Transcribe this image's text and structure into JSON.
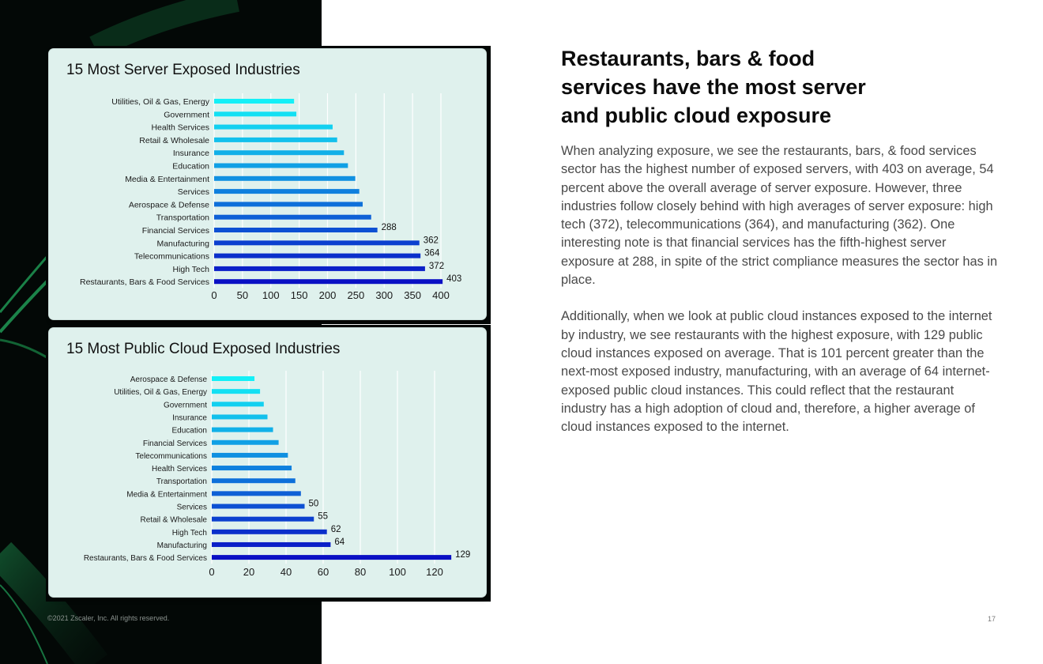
{
  "headline": "Restaurants, bars & food services have the most server and public cloud exposure",
  "paragraphs": [
    "When analyzing exposure, we see the restaurants, bars, & food services sector has the highest number of exposed servers, with 403 on average, 54 percent above the overall average of server exposure. However, three industries follow closely behind with high averages of server exposure: high tech (372), telecommunications (364), and manufacturing (362). One interesting note is that financial services has the fifth-highest server exposure at 288, in spite of the strict compliance measures the sector has in place.",
    "Additionally, when we look at public cloud instances exposed to the internet by industry, we see restaurants with the highest exposure, with 129 public cloud instances exposed on average. That is 101 percent greater than the next-most exposed industry, manufacturing, with an average of 64 internet-exposed public cloud instances. This could reflect that the restaurant industry has a high adoption of cloud and, therefore, a higher average of cloud instances exposed to the internet."
  ],
  "footer": "©2021 Zscaler, Inc. All rights reserved.",
  "page_number": "17",
  "colors": {
    "bar_light": "#14f0f7",
    "bar_dark": "#0a10c4",
    "card_bg": "#dff1ed",
    "panel_bg": "#030806",
    "accent_green": "#1a8a4a"
  },
  "chart_data": [
    {
      "type": "bar",
      "orientation": "horizontal",
      "title": "15 Most Server Exposed Industries",
      "categories": [
        "Utilities, Oil & Gas, Energy",
        "Government",
        "Health Services",
        "Retail & Wholesale",
        "Insurance",
        "Education",
        "Media & Entertainment",
        "Services",
        "Aerospace & Defense",
        "Transportation",
        "Financial Services",
        "Manufacturing",
        "Telecommunications",
        "High Tech",
        "Restaurants, Bars & Food Services"
      ],
      "values": [
        141,
        145,
        209,
        217,
        229,
        236,
        249,
        256,
        262,
        277,
        288,
        362,
        364,
        372,
        403
      ],
      "data_labels": [
        null,
        null,
        null,
        null,
        null,
        null,
        null,
        null,
        null,
        null,
        "288",
        "362",
        "364",
        "372",
        "403"
      ],
      "xlim": [
        0,
        400
      ],
      "ticks": [
        0,
        50,
        100,
        150,
        200,
        250,
        300,
        350,
        400
      ],
      "grid": true
    },
    {
      "type": "bar",
      "orientation": "horizontal",
      "title": "15 Most Public Cloud Exposed Industries",
      "categories": [
        "Aerospace & Defense",
        "Utilities, Oil & Gas, Energy",
        "Government",
        "Insurance",
        "Education",
        "Financial Services",
        "Telecommunications",
        "Health Services",
        "Transportation",
        "Media & Entertainment",
        "Services",
        "Retail & Wholesale",
        "High Tech",
        "Manufacturing",
        "Restaurants, Bars & Food Services"
      ],
      "values": [
        23,
        26,
        28,
        30,
        33,
        36,
        41,
        43,
        45,
        48,
        50,
        55,
        62,
        64,
        129
      ],
      "data_labels": [
        null,
        null,
        null,
        null,
        null,
        null,
        null,
        null,
        null,
        null,
        "50",
        "55",
        "62",
        "64",
        "129"
      ],
      "xlim": [
        0,
        120
      ],
      "ticks": [
        0,
        20,
        40,
        60,
        80,
        100,
        120
      ],
      "grid": true
    }
  ]
}
